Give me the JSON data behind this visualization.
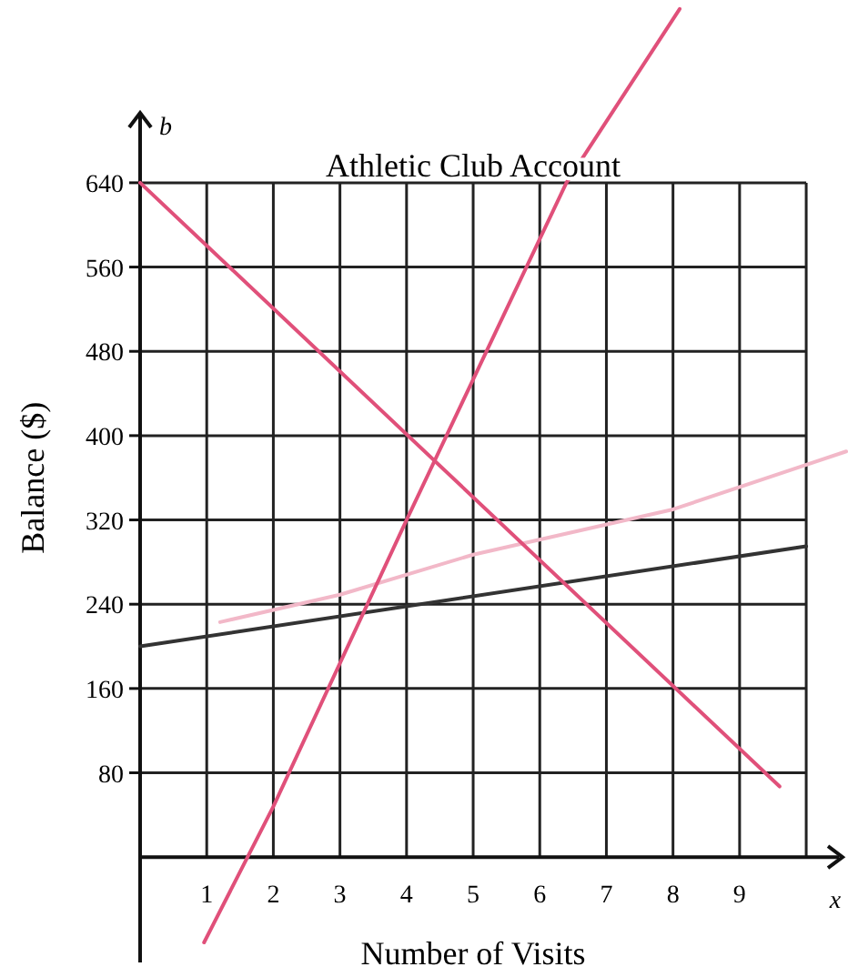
{
  "chart_data": {
    "type": "line",
    "title": "Athletic Club Account",
    "xlabel": "Number of Visits",
    "ylabel": "Balance ($)",
    "annotations": [
      "b",
      "x"
    ],
    "xlim": [
      0,
      10.6
    ],
    "ylim": [
      -100,
      810
    ],
    "xticks": [
      1,
      2,
      3,
      4,
      5,
      6,
      7,
      8,
      9,
      {
        "value": 10,
        "label": null
      }
    ],
    "yticks": [
      80,
      160,
      240,
      320,
      400,
      480,
      560,
      640
    ],
    "grid": true,
    "marker": "none",
    "line_style": "solid",
    "series": [
      {
        "color": "#333333",
        "x": [
          0,
          10
        ],
        "values": [
          200,
          295
        ]
      },
      {
        "color": "#f2b8c8",
        "x": [
          1.2,
          3,
          5,
          8,
          10.6
        ],
        "values": [
          223,
          249,
          287,
          330,
          385
        ]
      },
      {
        "color": "#e0507a",
        "x": [
          0,
          9.6
        ],
        "values": [
          640,
          67
        ]
      },
      {
        "color": "#e0507a",
        "x": [
          0.96,
          2,
          4,
          6.4,
          8.1
        ],
        "values": [
          -81,
          48,
          320,
          640,
          805
        ]
      }
    ]
  }
}
